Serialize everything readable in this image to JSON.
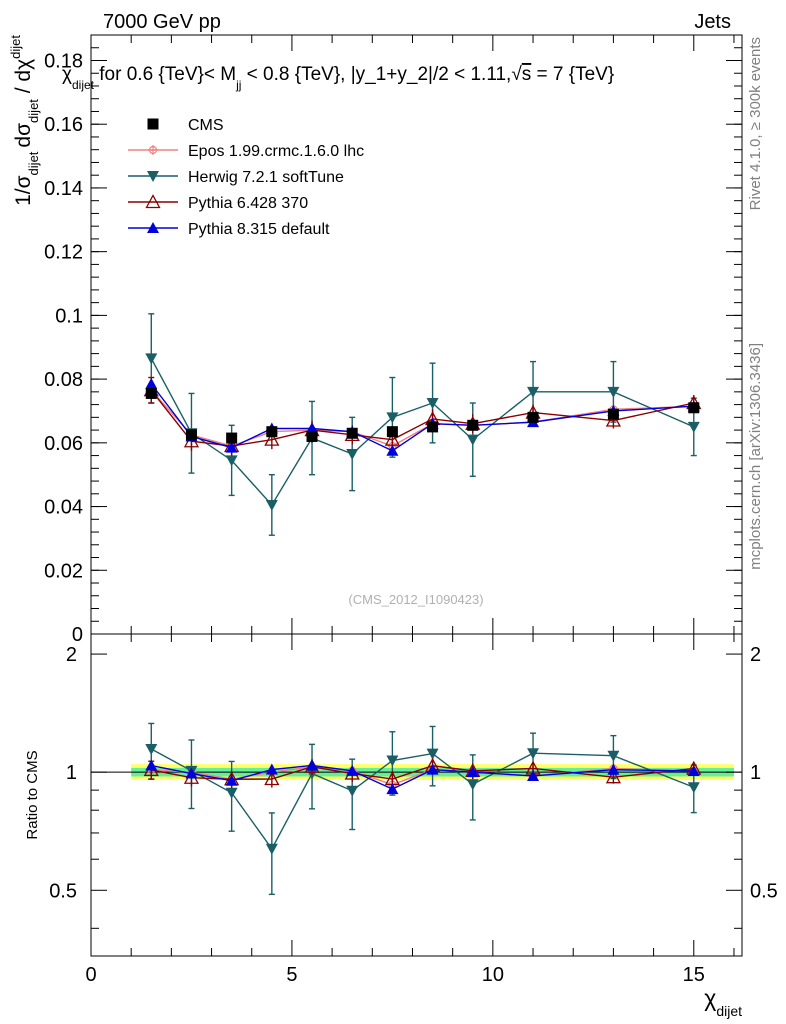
{
  "header": {
    "left": "7000 GeV pp",
    "right": "Jets"
  },
  "side_labels": {
    "rivet": "Rivet 4.1.0, ≥ 300k events",
    "mcplots": "mcplots.cern.ch [arXiv:1306.3436]"
  },
  "watermark": "(CMS_2012_I1090423)",
  "title_parts": {
    "chi": "χ",
    "chi_sub": "dijet",
    "mid": " for 0.6 {TeV}< M",
    "m_sub": "jj",
    "tail": " < 0.8 {TeV}, |y_1+y_2|/2 < 1.11,",
    "sqrt": "√",
    "s": "s",
    "end": " = 7 {TeV}"
  },
  "y_label_main": {
    "p1": "1/σ",
    "p1_sub": "dijet",
    "p2": "dσ",
    "p2_sub": "dijet",
    "p3": " / dχ",
    "p3_sub": "dijet"
  },
  "y_label_ratio": "Ratio to CMS",
  "x_label": {
    "main": "χ",
    "sub": "dijet"
  },
  "chart_data": {
    "type": "scatter",
    "x_range": [
      0,
      16.2
    ],
    "main": {
      "ylim": [
        0,
        0.188
      ],
      "y_ticks": [
        0,
        0.02,
        0.04,
        0.06,
        0.08,
        0.1,
        0.12,
        0.14,
        0.16,
        0.18
      ],
      "y_tick_labels": [
        "0",
        "0.02",
        "0.04",
        "0.06",
        "0.08",
        "0.1",
        "0.12",
        "0.14",
        "0.16",
        "0.18"
      ]
    },
    "ratio": {
      "ylim": [
        0.34,
        2.25
      ],
      "y_ticks": [
        0.5,
        1,
        2
      ],
      "y_tick_labels": [
        "0.5",
        "1",
        "2"
      ]
    },
    "x_ticks": [
      0,
      5,
      10,
      15
    ],
    "x_tick_labels": [
      "0",
      "5",
      "10",
      "15"
    ],
    "x": [
      1.5,
      2.5,
      3.5,
      4.5,
      5.5,
      6.5,
      7.5,
      8.5,
      9.5,
      11,
      13,
      15
    ],
    "x_bins": [
      [
        1,
        2
      ],
      [
        2,
        3
      ],
      [
        3,
        4
      ],
      [
        4,
        5
      ],
      [
        5,
        6
      ],
      [
        6,
        7
      ],
      [
        7,
        8
      ],
      [
        8,
        9
      ],
      [
        9,
        10
      ],
      [
        10,
        12
      ],
      [
        12,
        14
      ],
      [
        14,
        16
      ]
    ],
    "data": {
      "name": "CMS",
      "values": [
        0.0755,
        0.0625,
        0.0615,
        0.0635,
        0.062,
        0.063,
        0.0635,
        0.065,
        0.0655,
        0.068,
        0.069,
        0.071
      ],
      "band_inner": [
        0.975,
        1.025
      ],
      "band_outer": [
        0.955,
        1.048
      ],
      "band_colors": [
        "#ffff66",
        "#66ee99"
      ]
    },
    "series": [
      {
        "name": "Epos 1.99.crmc.1.6.0 lhc",
        "color": "#f08080",
        "marker": "cross",
        "values": [
          0.0765,
          0.0625,
          0.059,
          0.0635,
          0.064,
          0.0635,
          0.059,
          0.066,
          0.0655,
          0.0665,
          0.0705,
          0.0715
        ],
        "errors": [
          0.001,
          0.001,
          0.001,
          0.001,
          0.001,
          0.001,
          0.001,
          0.001,
          0.001,
          0.001,
          0.001,
          0.001
        ]
      },
      {
        "name": "Herwig 7.2.1 softTune",
        "color": "#1a5f66",
        "marker": "triangle-down",
        "values": [
          0.0865,
          0.063,
          0.0545,
          0.0405,
          0.0615,
          0.0565,
          0.068,
          0.0725,
          0.061,
          0.076,
          0.076,
          0.065
        ],
        "errors": [
          0.014,
          0.0125,
          0.011,
          0.0095,
          0.0115,
          0.0115,
          0.0125,
          0.0125,
          0.0115,
          0.0095,
          0.0095,
          0.009
        ]
      },
      {
        "name": "Pythia 6.428 370",
        "color": "#8b0000",
        "marker": "triangle-open",
        "values": [
          0.0765,
          0.0605,
          0.059,
          0.061,
          0.064,
          0.0625,
          0.061,
          0.0675,
          0.066,
          0.0695,
          0.067,
          0.0725
        ],
        "errors": [
          0.004,
          0.003,
          0.003,
          0.003,
          0.003,
          0.003,
          0.003,
          0.003,
          0.003,
          0.0025,
          0.0025,
          0.0025
        ]
      },
      {
        "name": "Pythia 8.315 default",
        "color": "#0000dd",
        "marker": "triangle-up",
        "values": [
          0.0785,
          0.062,
          0.0585,
          0.0645,
          0.0645,
          0.0635,
          0.0575,
          0.066,
          0.0655,
          0.0665,
          0.07,
          0.0715
        ],
        "errors": [
          0.0015,
          0.0012,
          0.0012,
          0.0012,
          0.0012,
          0.0012,
          0.0012,
          0.0012,
          0.0012,
          0.001,
          0.001,
          0.001
        ]
      }
    ]
  }
}
